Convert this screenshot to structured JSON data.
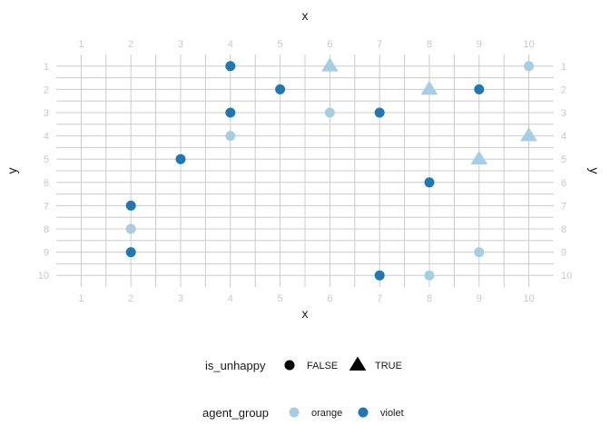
{
  "chart_data": {
    "type": "scatter",
    "xlabel": "x",
    "ylabel": "y",
    "x_ticks": [
      1,
      2,
      3,
      4,
      5,
      6,
      7,
      8,
      9,
      10
    ],
    "y_ticks": [
      1,
      2,
      3,
      4,
      5,
      6,
      7,
      8,
      9,
      10
    ],
    "xlim": [
      0.5,
      10.5
    ],
    "ylim": [
      0.5,
      10.5
    ],
    "y_reversed": true,
    "grid": true,
    "legend_placement": "bottom",
    "colors": {
      "orange": "#a6cee3",
      "violet": "#1f78b4"
    },
    "legend": {
      "shape": {
        "title": "is_unhappy",
        "entries": [
          {
            "label": "FALSE",
            "shape": "circle"
          },
          {
            "label": "TRUE",
            "shape": "triangle"
          }
        ]
      },
      "color": {
        "title": "agent_group",
        "entries": [
          {
            "label": "orange",
            "group": "orange"
          },
          {
            "label": "violet",
            "group": "violet"
          }
        ]
      }
    },
    "points": [
      {
        "x": 4,
        "y": 1,
        "group": "violet",
        "unhappy": false
      },
      {
        "x": 6,
        "y": 1,
        "group": "orange",
        "unhappy": true
      },
      {
        "x": 10,
        "y": 1,
        "group": "orange",
        "unhappy": false
      },
      {
        "x": 5,
        "y": 2,
        "group": "violet",
        "unhappy": false
      },
      {
        "x": 8,
        "y": 2,
        "group": "orange",
        "unhappy": true
      },
      {
        "x": 9,
        "y": 2,
        "group": "violet",
        "unhappy": false
      },
      {
        "x": 4,
        "y": 3,
        "group": "violet",
        "unhappy": false
      },
      {
        "x": 6,
        "y": 3,
        "group": "orange",
        "unhappy": false
      },
      {
        "x": 7,
        "y": 3,
        "group": "violet",
        "unhappy": false
      },
      {
        "x": 4,
        "y": 4,
        "group": "orange",
        "unhappy": false
      },
      {
        "x": 10,
        "y": 4,
        "group": "orange",
        "unhappy": true
      },
      {
        "x": 3,
        "y": 5,
        "group": "violet",
        "unhappy": false
      },
      {
        "x": 9,
        "y": 5,
        "group": "orange",
        "unhappy": true
      },
      {
        "x": 8,
        "y": 6,
        "group": "violet",
        "unhappy": false
      },
      {
        "x": 2,
        "y": 7,
        "group": "violet",
        "unhappy": false
      },
      {
        "x": 2,
        "y": 8,
        "group": "orange",
        "unhappy": false
      },
      {
        "x": 2,
        "y": 9,
        "group": "violet",
        "unhappy": false
      },
      {
        "x": 9,
        "y": 9,
        "group": "orange",
        "unhappy": false
      },
      {
        "x": 7,
        "y": 10,
        "group": "violet",
        "unhappy": false
      },
      {
        "x": 8,
        "y": 10,
        "group": "orange",
        "unhappy": false
      }
    ]
  }
}
